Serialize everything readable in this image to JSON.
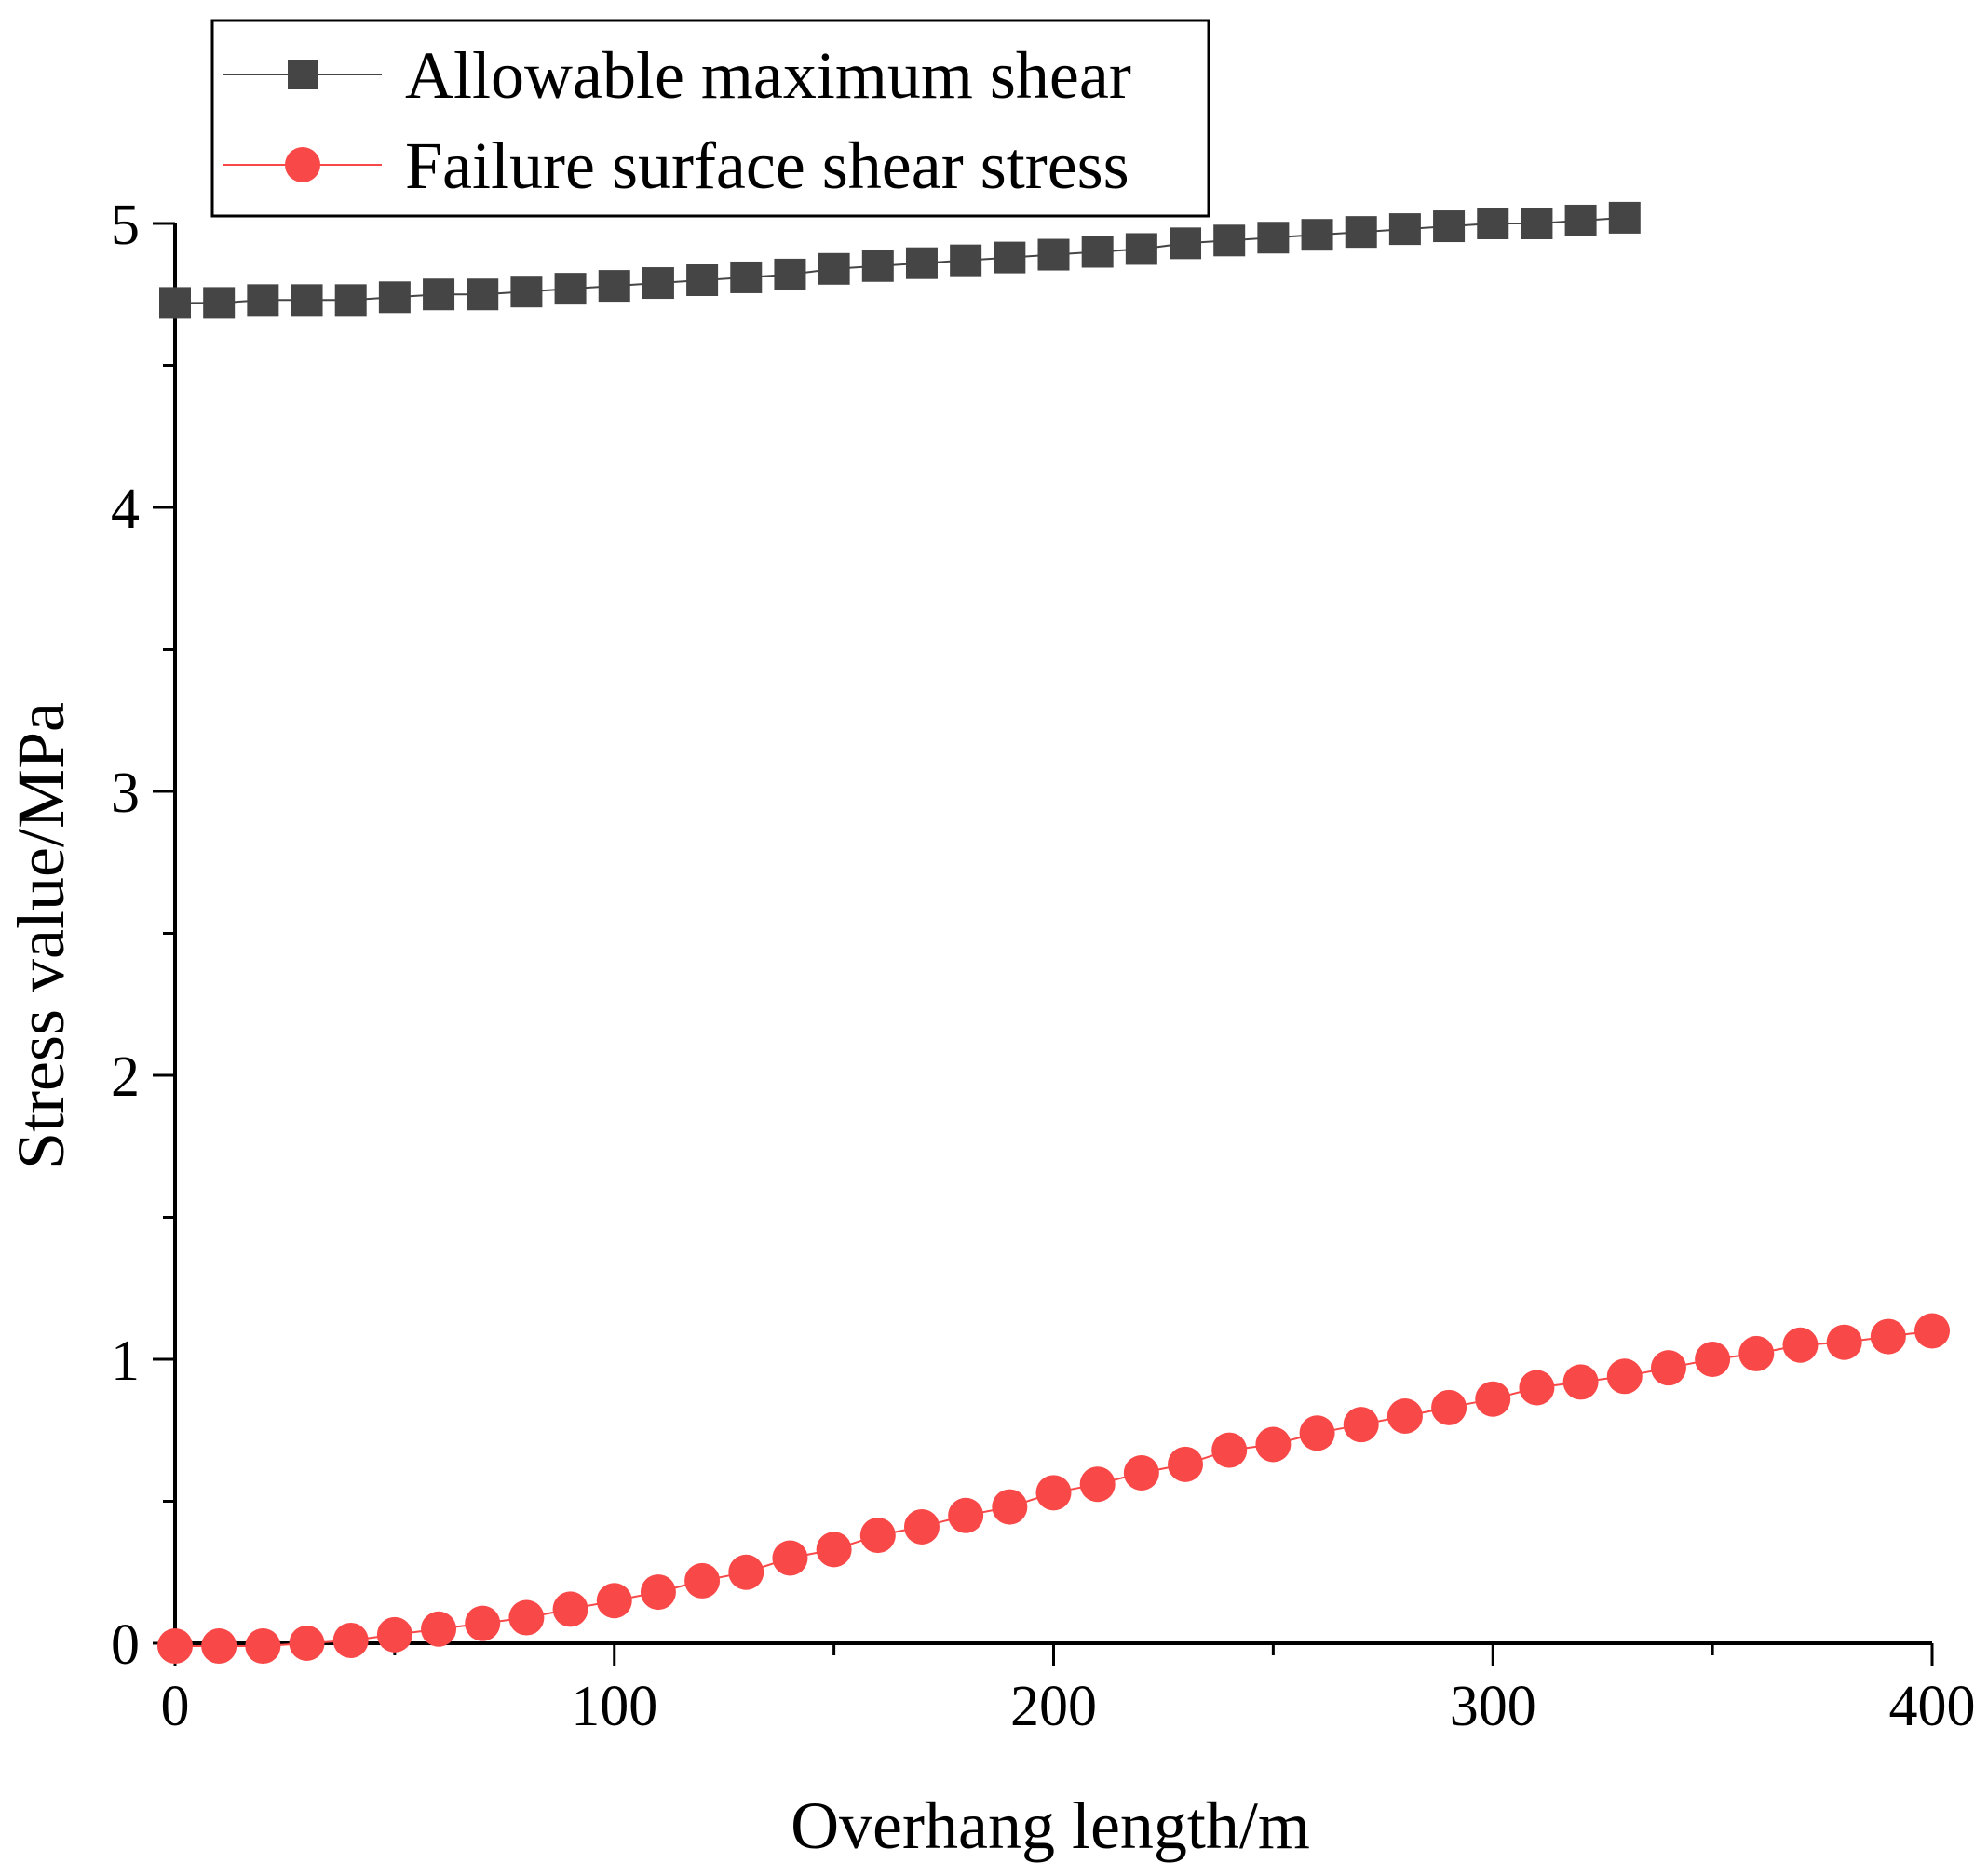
{
  "chart_data": {
    "type": "line",
    "title": "",
    "xlabel": "Overhang length/m",
    "ylabel": "Stress value/MPa",
    "xlim": [
      0,
      400
    ],
    "ylim": [
      0,
      5
    ],
    "x_ticks": [
      0,
      100,
      200,
      300,
      400
    ],
    "x_tick_labels": [
      "0",
      "100",
      "200",
      "300",
      "400"
    ],
    "y_ticks": [
      0,
      1,
      2,
      3,
      4,
      5
    ],
    "y_tick_labels": [
      "0",
      "1",
      "2",
      "3",
      "4",
      "5"
    ],
    "grid": false,
    "legend_position": "top-left",
    "series": [
      {
        "name": "Allowable maximum shear",
        "marker": "square",
        "color": "#454545",
        "x": [
          0,
          10,
          20,
          30,
          40,
          50,
          60,
          70,
          80,
          90,
          100,
          110,
          120,
          130,
          140,
          150,
          160,
          170,
          180,
          190,
          200,
          210,
          220,
          230,
          240,
          250,
          260,
          270,
          280,
          290,
          300,
          310,
          320,
          330
        ],
        "values": [
          4.72,
          4.72,
          4.73,
          4.73,
          4.73,
          4.74,
          4.75,
          4.75,
          4.76,
          4.77,
          4.78,
          4.79,
          4.8,
          4.81,
          4.82,
          4.84,
          4.85,
          4.86,
          4.87,
          4.88,
          4.89,
          4.9,
          4.91,
          4.93,
          4.94,
          4.95,
          4.96,
          4.97,
          4.98,
          4.99,
          5.0,
          5.0,
          5.01,
          5.02
        ]
      },
      {
        "name": "Failure surface shear stress",
        "marker": "circle",
        "color": "#f84848",
        "x": [
          0,
          10,
          20,
          30,
          40,
          50,
          60,
          70,
          80,
          90,
          100,
          110,
          120,
          130,
          140,
          150,
          160,
          170,
          180,
          190,
          200,
          210,
          220,
          230,
          240,
          250,
          260,
          270,
          280,
          290,
          300,
          310,
          320,
          330,
          340,
          350,
          360,
          370,
          380,
          390,
          400
        ],
        "values": [
          -0.01,
          -0.01,
          -0.01,
          0.0,
          0.01,
          0.03,
          0.05,
          0.07,
          0.09,
          0.12,
          0.15,
          0.18,
          0.22,
          0.25,
          0.3,
          0.33,
          0.38,
          0.41,
          0.45,
          0.48,
          0.53,
          0.56,
          0.6,
          0.63,
          0.68,
          0.7,
          0.74,
          0.77,
          0.8,
          0.83,
          0.86,
          0.9,
          0.92,
          0.94,
          0.97,
          1.0,
          1.02,
          1.05,
          1.06,
          1.08,
          1.1
        ]
      }
    ]
  }
}
